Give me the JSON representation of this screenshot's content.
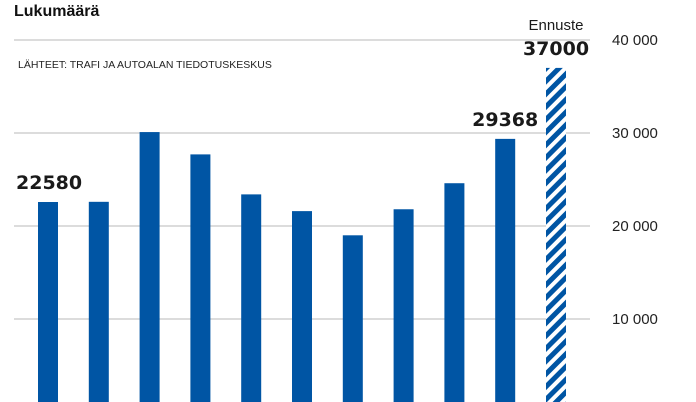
{
  "chart_data": {
    "type": "bar",
    "title": "Lukumäärä",
    "source": "LÄHTEET: TRAFI JA AUTOALAN TIEDOTUSKESKUS",
    "ylim": [
      0,
      40000
    ],
    "y_ticks": [
      10000,
      20000,
      30000,
      40000
    ],
    "y_tick_labels": [
      "10 000",
      "20 000",
      "30 000",
      "40 000"
    ],
    "y_axis_position": "right",
    "grid": true,
    "values": [
      22580,
      22600,
      30100,
      27700,
      23400,
      21600,
      19000,
      21800,
      24600,
      29368,
      37000
    ],
    "forecast_index": 10,
    "forecast_label": "Ennuste",
    "data_labels": [
      {
        "index": 0,
        "text": "22580"
      },
      {
        "index": 9,
        "text": "29368"
      },
      {
        "index": 10,
        "text": "37000"
      }
    ],
    "colors": {
      "bar": "#0055a4",
      "grid": "#b8b8b8"
    }
  }
}
